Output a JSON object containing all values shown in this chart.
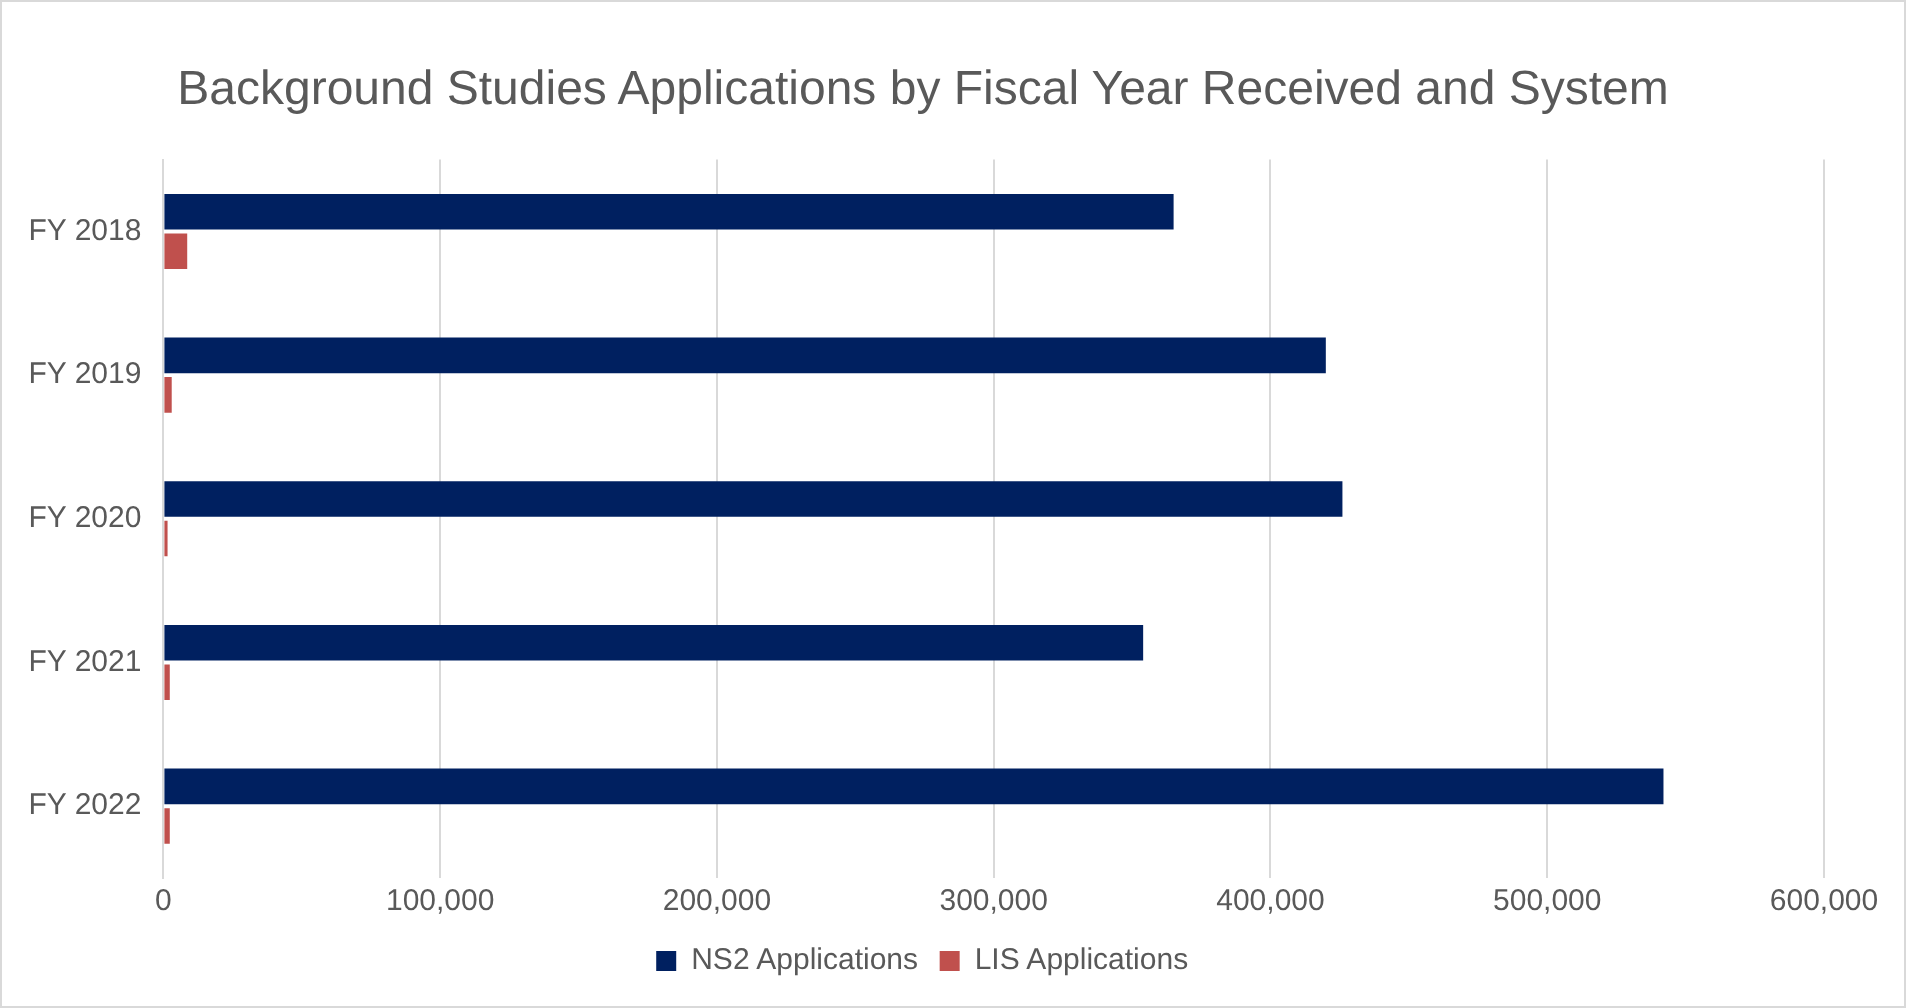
{
  "chart_data": {
    "type": "bar",
    "orientation": "horizontal",
    "title": "Background Studies Applications by Fiscal Year Received and System",
    "categories": [
      "FY 2018",
      "FY 2019",
      "FY 2020",
      "FY 2021",
      "FY 2022"
    ],
    "series": [
      {
        "name": "NS2 Applications",
        "color": "#002060",
        "values": [
          365000,
          420000,
          426000,
          354000,
          542000
        ]
      },
      {
        "name": "LIS Applications",
        "color": "#c0504d",
        "values": [
          8600,
          3000,
          1500,
          2300,
          2300
        ]
      }
    ],
    "xlim": [
      0,
      600000
    ],
    "xticks": [
      0,
      {
        "value": 100000,
        "label": "100,000"
      },
      {
        "value": 200000,
        "label": "200,000"
      },
      {
        "value": 300000,
        "label": "300,000"
      },
      {
        "value": 400000,
        "label": "400,000"
      },
      {
        "value": 500000,
        "label": "500,000"
      },
      {
        "value": 600000,
        "label": "600,000"
      }
    ],
    "grid": "x",
    "legend": "bottom"
  }
}
